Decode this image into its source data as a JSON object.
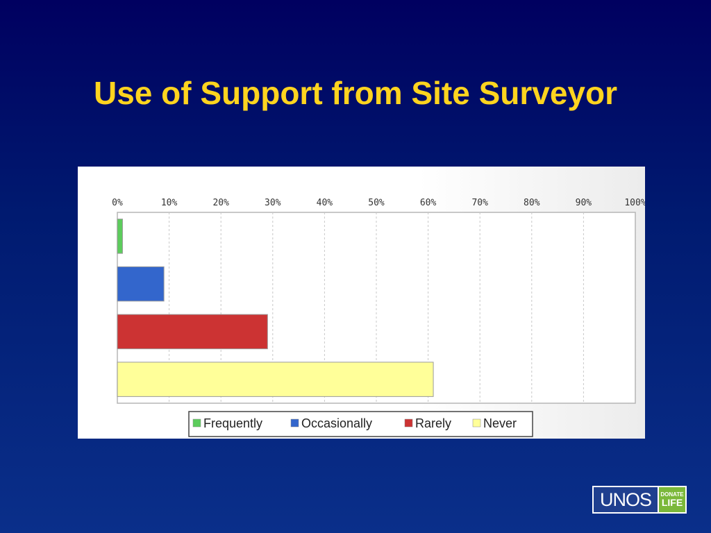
{
  "slide": {
    "title": "Use of Support from Site Surveyor"
  },
  "logo": {
    "name": "UNOS",
    "badge_top": "DONATE",
    "badge_bottom": "LIFE"
  },
  "chart_data": {
    "type": "bar",
    "orientation": "horizontal",
    "title": "",
    "xlabel": "",
    "ylabel": "",
    "xlim": [
      0,
      100
    ],
    "tick_labels": [
      "0%",
      "10%",
      "20%",
      "30%",
      "40%",
      "50%",
      "60%",
      "70%",
      "80%",
      "90%",
      "100%"
    ],
    "grid": true,
    "legend_position": "bottom",
    "series": [
      {
        "name": "Frequently",
        "value": 1,
        "color": "#5ccc5c"
      },
      {
        "name": "Occasionally",
        "value": 9,
        "color": "#3366cc"
      },
      {
        "name": "Rarely",
        "value": 29,
        "color": "#cc3333"
      },
      {
        "name": "Never",
        "value": 61,
        "color": "#ffff99"
      }
    ]
  }
}
